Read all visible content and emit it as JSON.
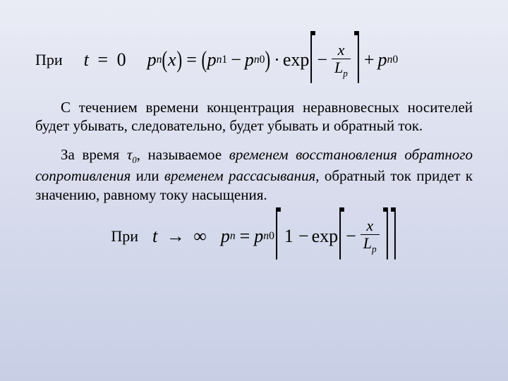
{
  "slide": {
    "background_gradient": [
      "#eaecf5",
      "#d8dced",
      "#c8cfe5"
    ],
    "text_color": "#000000",
    "font_family": "Times New Roman"
  },
  "line1": {
    "prefix": "При",
    "cond_lhs_var": "t",
    "cond_op": "=",
    "cond_rhs": "0",
    "eq": {
      "p": "p",
      "n": "n",
      "x": "x",
      "eq": "=",
      "p1": "p",
      "n1": "n",
      "one": "1",
      "minus": "−",
      "p0a": "p",
      "n0a": "n",
      "zero_a": "0",
      "dot": "·",
      "exp": "exp",
      "neg": "−",
      "frac_num": "x",
      "frac_den_L": "L",
      "frac_den_p": "p",
      "plus": "+",
      "p0b": "p",
      "n0b": "n",
      "zero_b": "0"
    }
  },
  "para1": "С течением времени концентрация неравновесных носителей будет убывать, следовательно, будет убывать и обратный ток.",
  "para2": {
    "t1": "За время ",
    "tau": "τ",
    "tau_sub": "0",
    "t2": ", называемое ",
    "em1": "временем восстановления обратного сопротивления",
    "t3": " или ",
    "em2": "временем рассасывания",
    "t4": ", обратный ток придет к значению, равному току насыщения."
  },
  "line2": {
    "prefix": "При",
    "cond_var": "t",
    "cond_arrow": "→",
    "cond_inf": "∞",
    "eq": {
      "p": "p",
      "n": "n",
      "eq": "=",
      "p0": "p",
      "n0": "n",
      "zero": "0",
      "one": "1",
      "minus": "−",
      "exp": "exp",
      "neg": "−",
      "frac_num": "x",
      "frac_den_L": "L",
      "frac_den_p": "p"
    }
  }
}
